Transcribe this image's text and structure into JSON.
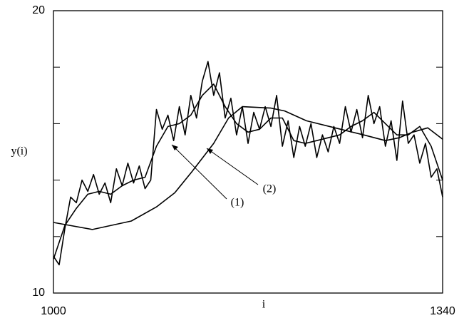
{
  "chart_data": {
    "type": "line",
    "xlabel": "i",
    "ylabel": "y(i)",
    "xlim": [
      1000,
      1340
    ],
    "ylim": [
      10,
      20
    ],
    "xticks": [
      1000,
      1340
    ],
    "yticks": [
      10,
      20
    ],
    "yminor": [
      12,
      14,
      16,
      18
    ],
    "annotations": [
      "(1)",
      "(2)"
    ],
    "series": [
      {
        "color": "#000000",
        "x": [
          1000,
          1005,
          1010,
          1015,
          1020,
          1025,
          1030,
          1035,
          1040,
          1045,
          1050,
          1055,
          1060,
          1065,
          1070,
          1075,
          1080,
          1085,
          1090,
          1095,
          1100,
          1105,
          1110,
          1115,
          1120,
          1125,
          1130,
          1135,
          1140,
          1145,
          1150,
          1155,
          1160,
          1165,
          1170,
          1175,
          1180,
          1185,
          1190,
          1195,
          1200,
          1205,
          1210,
          1215,
          1220,
          1225,
          1230,
          1235,
          1240,
          1245,
          1250,
          1255,
          1260,
          1265,
          1270,
          1275,
          1280,
          1285,
          1290,
          1295,
          1300,
          1305,
          1310,
          1315,
          1320,
          1325,
          1330,
          1335,
          1340
        ],
        "values": [
          11.3,
          11.0,
          12.3,
          13.4,
          13.2,
          14.0,
          13.6,
          14.2,
          13.5,
          13.9,
          13.2,
          14.4,
          13.8,
          14.6,
          13.9,
          14.5,
          13.7,
          14.0,
          16.5,
          15.8,
          16.3,
          15.4,
          16.6,
          15.6,
          17.0,
          16.2,
          17.5,
          18.2,
          17.0,
          17.8,
          16.2,
          16.9,
          15.6,
          16.6,
          15.3,
          16.4,
          15.8,
          16.6,
          15.9,
          17.0,
          15.2,
          16.1,
          14.8,
          15.9,
          15.2,
          16.0,
          14.8,
          15.6,
          15.0,
          15.9,
          15.3,
          16.6,
          15.7,
          16.5,
          15.5,
          17.0,
          16.0,
          16.6,
          15.2,
          16.1,
          14.7,
          16.8,
          15.3,
          15.6,
          14.6,
          15.3,
          14.1,
          14.4,
          13.4
        ]
      },
      {
        "color": "#000000",
        "x": [
          1000,
          1010,
          1020,
          1030,
          1040,
          1050,
          1060,
          1070,
          1080,
          1090,
          1100,
          1110,
          1120,
          1130,
          1140,
          1150,
          1160,
          1170,
          1180,
          1190,
          1200,
          1210,
          1220,
          1230,
          1240,
          1250,
          1260,
          1270,
          1280,
          1290,
          1300,
          1310,
          1320,
          1330,
          1340
        ],
        "values": [
          11.2,
          12.4,
          13.0,
          13.5,
          13.6,
          13.5,
          13.8,
          14.0,
          14.1,
          15.2,
          15.9,
          16.0,
          16.3,
          17.0,
          17.4,
          16.6,
          16.0,
          15.7,
          15.8,
          16.2,
          16.2,
          15.4,
          15.3,
          15.4,
          15.5,
          15.6,
          15.9,
          16.1,
          16.4,
          16.0,
          15.6,
          15.6,
          15.9,
          15.2,
          14.0
        ]
      },
      {
        "color": "#000000",
        "x": [
          1000,
          1034,
          1068,
          1090,
          1106,
          1121,
          1140,
          1153,
          1165,
          1190,
          1202,
          1221,
          1246,
          1271,
          1290,
          1302,
          1314,
          1327,
          1340
        ],
        "values": [
          12.5,
          12.25,
          12.55,
          13.05,
          13.55,
          14.3,
          15.3,
          16.2,
          16.6,
          16.55,
          16.45,
          16.1,
          15.85,
          15.6,
          15.4,
          15.5,
          15.7,
          15.85,
          15.45
        ]
      }
    ]
  }
}
